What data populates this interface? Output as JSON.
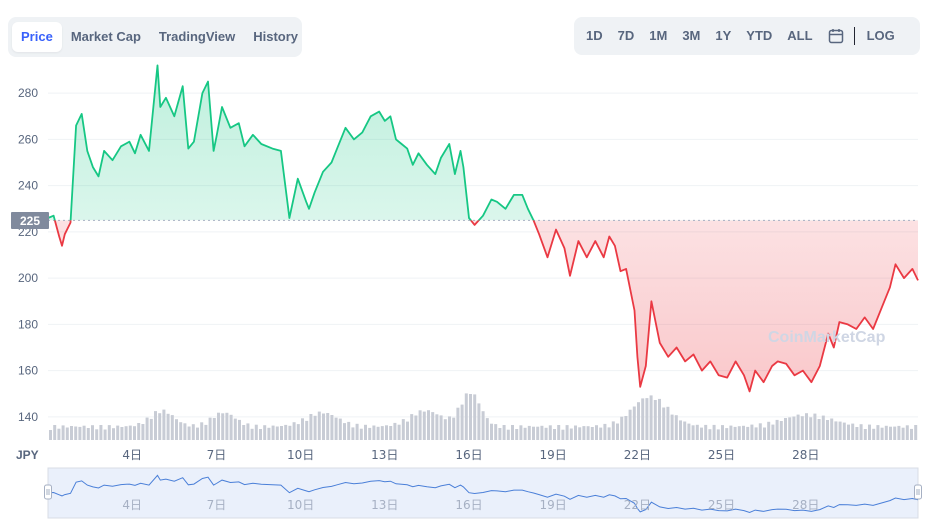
{
  "tabs": [
    {
      "label": "Price",
      "active": true
    },
    {
      "label": "Market Cap",
      "active": false
    },
    {
      "label": "TradingView",
      "active": false
    },
    {
      "label": "History",
      "active": false
    }
  ],
  "ranges": [
    {
      "label": "1D"
    },
    {
      "label": "7D"
    },
    {
      "label": "1M"
    },
    {
      "label": "3M"
    },
    {
      "label": "1Y"
    },
    {
      "label": "YTD"
    },
    {
      "label": "ALL"
    }
  ],
  "calendar_icon": "calendar-icon",
  "log_label": "LOG",
  "currency": "JPY",
  "watermark": "CoinMarketCap",
  "current_price_label": "225",
  "colors": {
    "up": "#16c784",
    "down": "#ea3943",
    "accent": "#3861fb",
    "volume": "#c8ccd5",
    "navigator": "#4a7fd8"
  },
  "chart_data": {
    "type": "line",
    "title": "",
    "xlabel": "",
    "ylabel": "",
    "currency": "JPY",
    "ylim": [
      130,
      290
    ],
    "yticks": [
      140,
      160,
      180,
      200,
      220,
      240,
      260,
      280
    ],
    "xlim": [
      1,
      32
    ],
    "xticks": [
      {
        "day": 4,
        "label": "4日"
      },
      {
        "day": 7,
        "label": "7日"
      },
      {
        "day": 10,
        "label": "10日"
      },
      {
        "day": 13,
        "label": "13日"
      },
      {
        "day": 16,
        "label": "16日"
      },
      {
        "day": 19,
        "label": "19日"
      },
      {
        "day": 22,
        "label": "22日"
      },
      {
        "day": 25,
        "label": "25日"
      },
      {
        "day": 28,
        "label": "28日"
      }
    ],
    "baseline": 225,
    "series": [
      {
        "x": [
          1.0,
          1.2,
          1.4,
          1.5,
          1.6,
          1.8,
          2.0,
          2.2,
          2.4,
          2.6,
          2.8,
          3.0,
          3.3,
          3.6,
          3.9,
          4.1,
          4.3,
          4.6,
          4.9,
          5.0,
          5.2,
          5.5,
          5.8,
          6.0,
          6.2,
          6.5,
          6.7,
          6.9,
          7.0,
          7.2,
          7.5,
          7.8,
          8.0,
          8.3,
          8.6,
          9.0,
          9.3,
          9.6,
          9.9,
          10.2,
          10.3,
          10.5,
          10.8,
          11.1,
          11.3,
          11.6,
          11.9,
          12.2,
          12.5,
          12.8,
          13.0,
          13.2,
          13.4,
          13.6,
          13.8,
          14.0,
          14.2,
          14.5,
          14.8,
          15.0,
          15.3,
          15.5,
          15.7,
          15.8,
          16.0,
          16.2,
          16.5,
          16.8,
          17.0,
          17.3,
          17.6,
          17.9,
          18.1,
          18.3,
          18.5,
          18.8,
          19.1,
          19.4,
          19.6,
          19.9,
          20.2,
          20.5,
          20.8,
          21.0,
          21.2,
          21.4,
          21.6,
          21.9,
          22.0,
          22.1,
          22.3,
          22.5,
          22.8,
          23.1,
          23.4,
          23.7,
          24.0,
          24.3,
          24.6,
          24.9,
          25.2,
          25.5,
          25.8,
          26.0,
          26.2,
          26.5,
          26.8,
          27.0,
          27.3,
          27.6,
          27.9,
          28.2,
          28.5,
          28.8,
          29.0,
          29.2,
          29.5,
          29.8,
          30.1,
          30.4,
          30.7,
          31.0,
          31.2,
          31.5,
          31.8,
          32.0
        ],
        "y": [
          226,
          227,
          218,
          214,
          219,
          224,
          266,
          271,
          255,
          248,
          244,
          255,
          251,
          257,
          259,
          254,
          262,
          255,
          292,
          274,
          278,
          270,
          283,
          256,
          259,
          280,
          285,
          255,
          261,
          274,
          265,
          267,
          257,
          262,
          258,
          256,
          255,
          226,
          243,
          233,
          230,
          237,
          246,
          250,
          256,
          265,
          260,
          263,
          270,
          272,
          268,
          270,
          260,
          258,
          256,
          249,
          254,
          249,
          245,
          252,
          258,
          245,
          255,
          248,
          226,
          223,
          227,
          234,
          233,
          230,
          236,
          236,
          230,
          225,
          219,
          209,
          221,
          213,
          201,
          216,
          209,
          216,
          209,
          218,
          214,
          203,
          204,
          186,
          166,
          153,
          162,
          190,
          172,
          166,
          170,
          164,
          167,
          160,
          164,
          158,
          157,
          164,
          158,
          151,
          160,
          155,
          162,
          164,
          163,
          158,
          160,
          155,
          162,
          176,
          170,
          181,
          180,
          178,
          183,
          178,
          187,
          196,
          206,
          200,
          204,
          199
        ]
      }
    ]
  }
}
